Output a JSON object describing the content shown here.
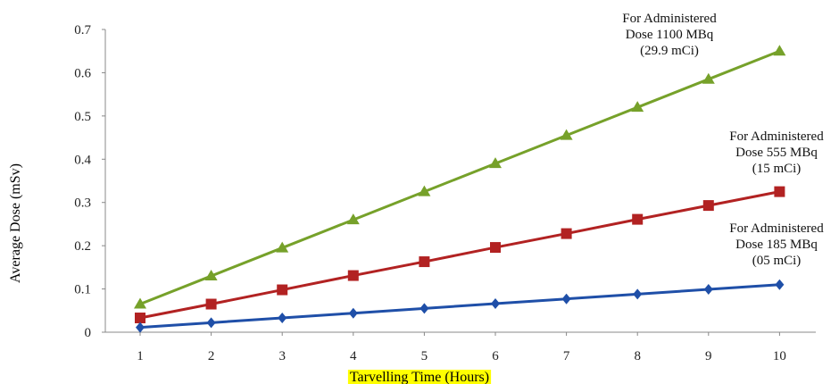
{
  "chart_data": {
    "type": "line",
    "title": "",
    "xlabel": "Tarvelling Time (Hours)",
    "ylabel": "Average Dose (mSv)",
    "x": [
      1,
      2,
      3,
      4,
      5,
      6,
      7,
      8,
      9,
      10
    ],
    "ylim": [
      0,
      0.7
    ],
    "y_ticks": [
      "0",
      "0.1",
      "0.2",
      "0.3",
      "0.4",
      "0.5",
      "0.6",
      "0.7"
    ],
    "x_ticks": [
      "1",
      "2",
      "3",
      "4",
      "5",
      "6",
      "7",
      "8",
      "9",
      "10"
    ],
    "grid": false,
    "xlabel_highlight": "#ffff00",
    "series": [
      {
        "color": "#76a12a",
        "marker": "triangle",
        "values": [
          0.065,
          0.13,
          0.195,
          0.26,
          0.325,
          0.39,
          0.455,
          0.52,
          0.585,
          0.65
        ],
        "annotation": [
          "For Administered",
          "Dose 1100 MBq",
          "(29.9 mCi)"
        ]
      },
      {
        "color": "#b22222",
        "marker": "square",
        "values": [
          0.033,
          0.065,
          0.098,
          0.131,
          0.163,
          0.196,
          0.228,
          0.261,
          0.293,
          0.325
        ],
        "annotation": [
          "For Administered",
          "Dose 555 MBq",
          "(15 mCi)"
        ]
      },
      {
        "color": "#1f4fa8",
        "marker": "diamond",
        "values": [
          0.011,
          0.022,
          0.033,
          0.044,
          0.055,
          0.066,
          0.077,
          0.088,
          0.099,
          0.11
        ],
        "annotation": [
          "For Administered",
          "Dose 185 MBq",
          "(05 mCi)"
        ]
      }
    ]
  }
}
